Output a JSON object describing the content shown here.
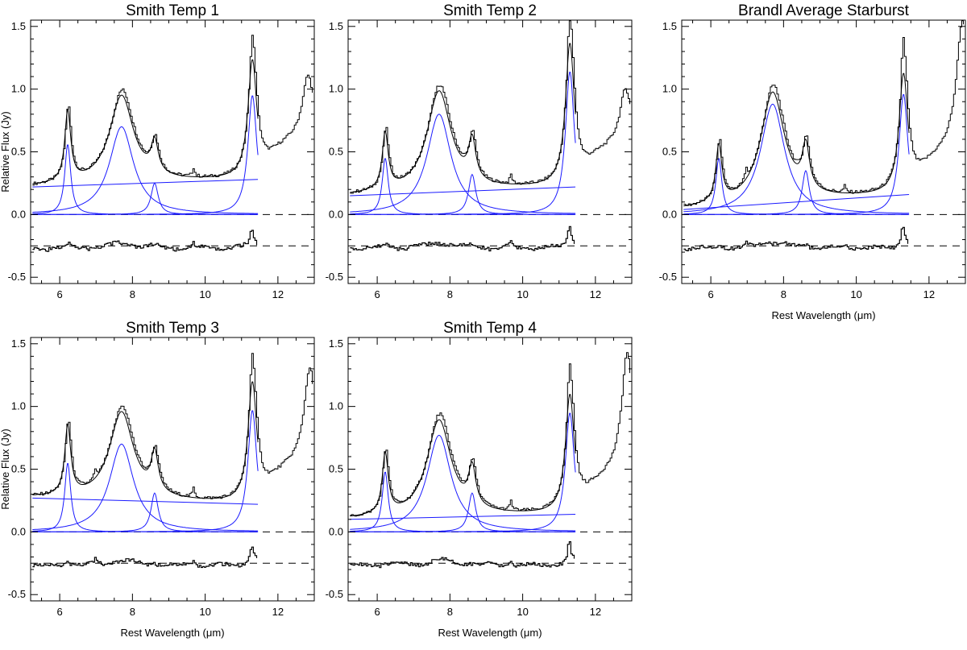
{
  "figure": {
    "ylabel": "Relative Flux (Jy)",
    "xlabel": "Rest Wavelength (μm)"
  },
  "colors": {
    "data": "#000000",
    "component": "#1a1aff",
    "frame": "#000000"
  },
  "chart_data": [
    {
      "type": "line",
      "title": "Smith Temp 1",
      "xlim": [
        5.2,
        13.0
      ],
      "ylim": [
        -0.55,
        1.55
      ],
      "xticks": [
        6,
        8,
        10,
        12
      ],
      "xtick_labels": [
        "6",
        "8",
        "10",
        "12"
      ],
      "yticks": [
        -0.5,
        0.0,
        0.5,
        1.0,
        1.5
      ],
      "ytick_labels": [
        "-0.5",
        "0.0",
        "0.5",
        "1.0",
        "1.5"
      ],
      "show_ylabel": true,
      "show_xlabel": false,
      "continuum": [
        0.22,
        0.28
      ],
      "features": [
        {
          "name": "6.2 μm",
          "center": 6.22,
          "peak": 0.56,
          "width": 0.1
        },
        {
          "name": "7.7 μm",
          "center": 7.7,
          "peak": 0.7,
          "width": 0.4
        },
        {
          "name": "8.6 μm",
          "center": 8.61,
          "peak": 0.25,
          "width": 0.12
        },
        {
          "name": "11.3 μm",
          "center": 11.3,
          "peak": 0.95,
          "width": 0.15
        }
      ],
      "data_extra": [
        {
          "center": 9.66,
          "peak": 0.07,
          "width": 0.04
        },
        {
          "center": 11.26,
          "peak": 0.18,
          "width": 0.04
        },
        {
          "center": 12.8,
          "peak": 0.45,
          "width": 0.18
        }
      ],
      "residual_offset": -0.25
    },
    {
      "type": "line",
      "title": "Smith Temp 2",
      "xlim": [
        5.2,
        13.0
      ],
      "ylim": [
        -0.55,
        1.55
      ],
      "xticks": [
        6,
        8,
        10,
        12
      ],
      "xtick_labels": [
        "6",
        "8",
        "10",
        "12"
      ],
      "yticks": [
        -0.5,
        0.0,
        0.5,
        1.0,
        1.5
      ],
      "ytick_labels": [
        "-0.5",
        "0.0",
        "0.5",
        "1.0",
        "1.5"
      ],
      "show_ylabel": false,
      "show_xlabel": false,
      "continuum": [
        0.15,
        0.22
      ],
      "features": [
        {
          "name": "6.2 μm",
          "center": 6.22,
          "peak": 0.45,
          "width": 0.1
        },
        {
          "name": "7.7 μm",
          "center": 7.7,
          "peak": 0.8,
          "width": 0.4
        },
        {
          "name": "8.6 μm",
          "center": 8.61,
          "peak": 0.32,
          "width": 0.12
        },
        {
          "name": "11.3 μm",
          "center": 11.3,
          "peak": 1.14,
          "width": 0.15
        }
      ],
      "data_extra": [
        {
          "center": 9.66,
          "peak": 0.07,
          "width": 0.04
        },
        {
          "center": 11.26,
          "peak": 0.22,
          "width": 0.04
        },
        {
          "center": 12.8,
          "peak": 0.4,
          "width": 0.18
        }
      ],
      "residual_offset": -0.25
    },
    {
      "type": "line",
      "title": "Brandl Average Starburst",
      "xlim": [
        5.2,
        13.0
      ],
      "ylim": [
        -0.55,
        1.55
      ],
      "xticks": [
        6,
        8,
        10,
        12
      ],
      "xtick_labels": [
        "6",
        "8",
        "10",
        "12"
      ],
      "yticks": [
        -0.5,
        0.0,
        0.5,
        1.0,
        1.5
      ],
      "ytick_labels": [
        "-0.5",
        "0.0",
        "0.5",
        "1.0",
        "1.5"
      ],
      "show_ylabel": false,
      "show_xlabel": true,
      "continuum": [
        0.04,
        0.16
      ],
      "features": [
        {
          "name": "6.2 μm",
          "center": 6.22,
          "peak": 0.45,
          "width": 0.1
        },
        {
          "name": "7.7 μm",
          "center": 7.7,
          "peak": 0.88,
          "width": 0.4
        },
        {
          "name": "8.6 μm",
          "center": 8.61,
          "peak": 0.35,
          "width": 0.12
        },
        {
          "name": "11.3 μm",
          "center": 11.3,
          "peak": 0.96,
          "width": 0.15
        }
      ],
      "data_extra": [
        {
          "center": 6.95,
          "peak": 0.08,
          "width": 0.04
        },
        {
          "center": 9.66,
          "peak": 0.05,
          "width": 0.04
        },
        {
          "center": 11.26,
          "peak": 0.28,
          "width": 0.04
        },
        {
          "center": 12.9,
          "peak": 1.0,
          "width": 0.2
        }
      ],
      "residual_offset": -0.25
    },
    {
      "type": "line",
      "title": "Smith Temp 3",
      "xlim": [
        5.2,
        13.0
      ],
      "ylim": [
        -0.55,
        1.55
      ],
      "xticks": [
        6,
        8,
        10,
        12
      ],
      "xtick_labels": [
        "6",
        "8",
        "10",
        "12"
      ],
      "yticks": [
        -0.5,
        0.0,
        0.5,
        1.0,
        1.5
      ],
      "ytick_labels": [
        "-0.5",
        "0.0",
        "0.5",
        "1.0",
        "1.5"
      ],
      "show_ylabel": true,
      "show_xlabel": true,
      "continuum": [
        0.27,
        0.22
      ],
      "features": [
        {
          "name": "6.2 μm",
          "center": 6.22,
          "peak": 0.55,
          "width": 0.1
        },
        {
          "name": "7.7 μm",
          "center": 7.7,
          "peak": 0.7,
          "width": 0.4
        },
        {
          "name": "8.6 μm",
          "center": 8.61,
          "peak": 0.31,
          "width": 0.12
        },
        {
          "name": "11.3 μm",
          "center": 11.3,
          "peak": 0.97,
          "width": 0.15
        }
      ],
      "data_extra": [
        {
          "center": 6.95,
          "peak": 0.06,
          "width": 0.04
        },
        {
          "center": 9.66,
          "peak": 0.07,
          "width": 0.04
        },
        {
          "center": 11.26,
          "peak": 0.22,
          "width": 0.04
        },
        {
          "center": 12.85,
          "peak": 0.7,
          "width": 0.18
        }
      ],
      "residual_offset": -0.25
    },
    {
      "type": "line",
      "title": "Smith Temp 4",
      "xlim": [
        5.2,
        13.0
      ],
      "ylim": [
        -0.55,
        1.55
      ],
      "xticks": [
        6,
        8,
        10,
        12
      ],
      "xtick_labels": [
        "6",
        "8",
        "10",
        "12"
      ],
      "yticks": [
        -0.5,
        0.0,
        0.5,
        1.0,
        1.5
      ],
      "ytick_labels": [
        "-0.5",
        "0.0",
        "0.5",
        "1.0",
        "1.5"
      ],
      "show_ylabel": false,
      "show_xlabel": true,
      "continuum": [
        0.1,
        0.14
      ],
      "features": [
        {
          "name": "6.2 μm",
          "center": 6.22,
          "peak": 0.48,
          "width": 0.1
        },
        {
          "name": "7.7 μm",
          "center": 7.7,
          "peak": 0.77,
          "width": 0.4
        },
        {
          "name": "8.6 μm",
          "center": 8.61,
          "peak": 0.31,
          "width": 0.12
        },
        {
          "name": "11.3 μm",
          "center": 11.3,
          "peak": 0.95,
          "width": 0.15
        }
      ],
      "data_extra": [
        {
          "center": 9.66,
          "peak": 0.07,
          "width": 0.04
        },
        {
          "center": 11.26,
          "peak": 0.24,
          "width": 0.04
        },
        {
          "center": 12.85,
          "peak": 0.9,
          "width": 0.18
        }
      ],
      "residual_offset": -0.25
    }
  ]
}
